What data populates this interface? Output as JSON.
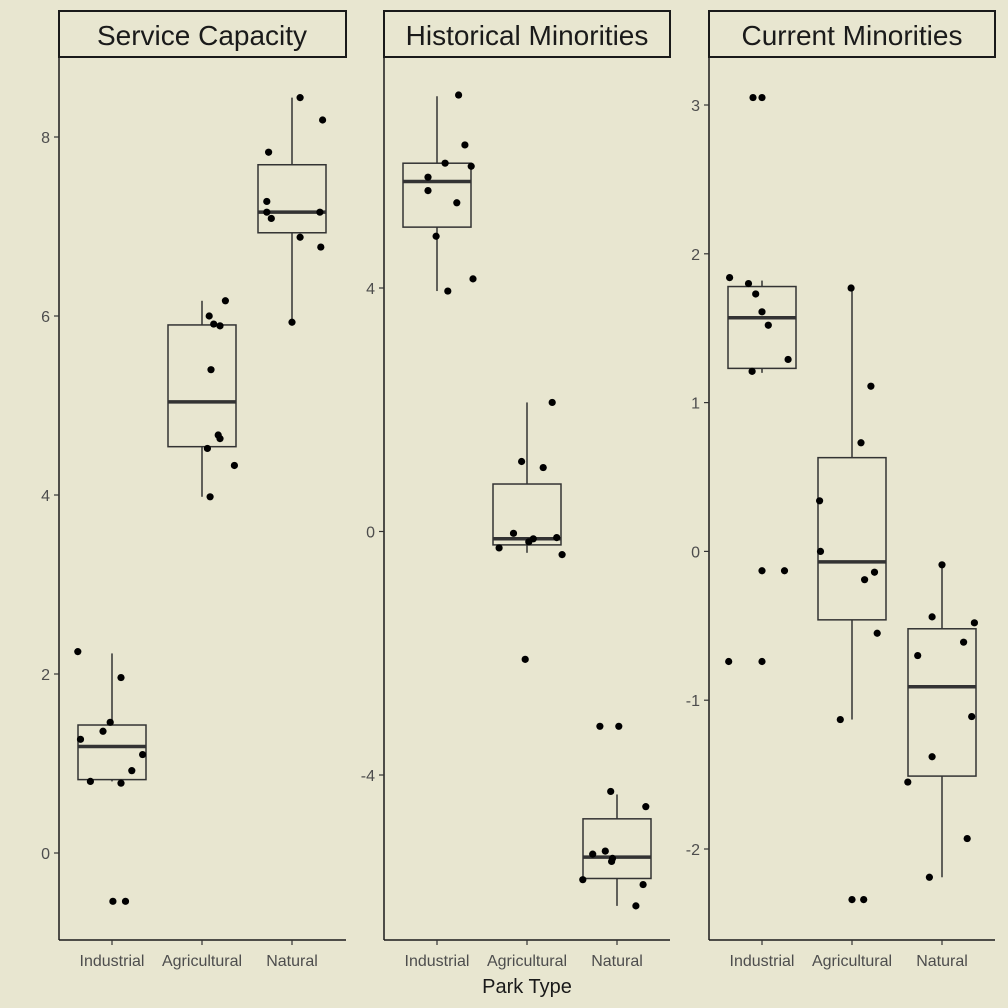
{
  "figure": {
    "xlabel": "Park Type",
    "background": "#E8E6D0"
  },
  "chart_data": [
    {
      "type": "boxplot",
      "title": "Service Capacity",
      "categories": [
        "Industrial",
        "Agricultural",
        "Natural"
      ],
      "yticks": [
        0,
        2,
        4,
        6,
        8
      ],
      "ylim": [
        -1.0,
        8.8
      ],
      "boxes": [
        {
          "q1": 0.82,
          "median": 1.19,
          "q3": 1.43,
          "lo": 0.8,
          "hi": 2.23
        },
        {
          "q1": 4.54,
          "median": 5.04,
          "q3": 5.9,
          "lo": 3.98,
          "hi": 6.17
        },
        {
          "q1": 6.93,
          "median": 7.16,
          "q3": 7.69,
          "lo": 5.93,
          "hi": 8.44
        }
      ],
      "points": [
        {
          "category": "Industrial",
          "offset": -0.38,
          "y": 2.25
        },
        {
          "category": "Industrial",
          "offset": -0.35,
          "y": 1.27
        },
        {
          "category": "Industrial",
          "offset": -0.24,
          "y": 0.8
        },
        {
          "category": "Industrial",
          "offset": -0.1,
          "y": 1.36
        },
        {
          "category": "Industrial",
          "offset": -0.02,
          "y": 1.46
        },
        {
          "category": "Industrial",
          "offset": 0.1,
          "y": 1.96
        },
        {
          "category": "Industrial",
          "offset": 0.1,
          "y": 0.78
        },
        {
          "category": "Industrial",
          "offset": 0.22,
          "y": 0.92
        },
        {
          "category": "Industrial",
          "offset": 0.34,
          "y": 1.1
        },
        {
          "category": "Industrial",
          "offset": 0.01,
          "y": -0.54
        },
        {
          "category": "Industrial",
          "offset": 0.15,
          "y": -0.54
        },
        {
          "category": "Agricultural",
          "offset": 0.06,
          "y": 4.52
        },
        {
          "category": "Agricultural",
          "offset": 0.1,
          "y": 5.4
        },
        {
          "category": "Agricultural",
          "offset": 0.08,
          "y": 6.0
        },
        {
          "category": "Agricultural",
          "offset": 0.13,
          "y": 5.91
        },
        {
          "category": "Agricultural",
          "offset": 0.2,
          "y": 5.89
        },
        {
          "category": "Agricultural",
          "offset": 0.26,
          "y": 6.17
        },
        {
          "category": "Agricultural",
          "offset": 0.18,
          "y": 4.67
        },
        {
          "category": "Agricultural",
          "offset": 0.2,
          "y": 4.63
        },
        {
          "category": "Agricultural",
          "offset": 0.09,
          "y": 3.98
        },
        {
          "category": "Agricultural",
          "offset": 0.36,
          "y": 4.33
        },
        {
          "category": "Natural",
          "offset": -0.26,
          "y": 7.83
        },
        {
          "category": "Natural",
          "offset": -0.28,
          "y": 7.28
        },
        {
          "category": "Natural",
          "offset": -0.28,
          "y": 7.16
        },
        {
          "category": "Natural",
          "offset": -0.23,
          "y": 7.09
        },
        {
          "category": "Natural",
          "offset": 0.09,
          "y": 8.44
        },
        {
          "category": "Natural",
          "offset": 0.34,
          "y": 8.19
        },
        {
          "category": "Natural",
          "offset": 0.31,
          "y": 7.16
        },
        {
          "category": "Natural",
          "offset": 0.09,
          "y": 6.88
        },
        {
          "category": "Natural",
          "offset": 0.32,
          "y": 6.77
        },
        {
          "category": "Natural",
          "offset": 0.0,
          "y": 5.93
        }
      ]
    },
    {
      "type": "boxplot",
      "title": "Historical Minorities",
      "categories": [
        "Industrial",
        "Agricultural",
        "Natural"
      ],
      "yticks": [
        -4,
        0,
        4
      ],
      "ylim": [
        -6.75,
        7.8
      ],
      "boxes": [
        {
          "q1": 5.0,
          "median": 5.75,
          "q3": 6.05,
          "lo": 3.95,
          "hi": 7.15
        },
        {
          "q1": -0.22,
          "median": -0.12,
          "q3": 0.78,
          "lo": -0.35,
          "hi": 2.12
        },
        {
          "q1": -5.7,
          "median": -5.35,
          "q3": -4.72,
          "lo": -6.15,
          "hi": -4.32
        }
      ],
      "points": [
        {
          "category": "Industrial",
          "offset": -0.1,
          "y": 5.6
        },
        {
          "category": "Industrial",
          "offset": -0.1,
          "y": 5.82
        },
        {
          "category": "Industrial",
          "offset": -0.01,
          "y": 4.85
        },
        {
          "category": "Industrial",
          "offset": 0.09,
          "y": 6.05
        },
        {
          "category": "Industrial",
          "offset": 0.22,
          "y": 5.4
        },
        {
          "category": "Industrial",
          "offset": 0.24,
          "y": 7.17
        },
        {
          "category": "Industrial",
          "offset": 0.31,
          "y": 6.35
        },
        {
          "category": "Industrial",
          "offset": 0.38,
          "y": 6.0
        },
        {
          "category": "Industrial",
          "offset": 0.12,
          "y": 3.95
        },
        {
          "category": "Industrial",
          "offset": 0.4,
          "y": 4.15
        },
        {
          "category": "Agricultural",
          "offset": -0.31,
          "y": -0.27
        },
        {
          "category": "Agricultural",
          "offset": -0.15,
          "y": -0.03
        },
        {
          "category": "Agricultural",
          "offset": 0.02,
          "y": -0.17
        },
        {
          "category": "Agricultural",
          "offset": 0.07,
          "y": -0.12
        },
        {
          "category": "Agricultural",
          "offset": -0.06,
          "y": 1.15
        },
        {
          "category": "Agricultural",
          "offset": 0.18,
          "y": 1.05
        },
        {
          "category": "Agricultural",
          "offset": 0.28,
          "y": 2.12
        },
        {
          "category": "Agricultural",
          "offset": 0.33,
          "y": -0.1
        },
        {
          "category": "Agricultural",
          "offset": 0.39,
          "y": -0.38
        },
        {
          "category": "Agricultural",
          "offset": -0.02,
          "y": -2.1
        },
        {
          "category": "Natural",
          "offset": -0.19,
          "y": -3.2
        },
        {
          "category": "Natural",
          "offset": 0.02,
          "y": -3.2
        },
        {
          "category": "Natural",
          "offset": -0.07,
          "y": -4.27
        },
        {
          "category": "Natural",
          "offset": 0.32,
          "y": -4.52
        },
        {
          "category": "Natural",
          "offset": -0.38,
          "y": -5.72
        },
        {
          "category": "Natural",
          "offset": -0.27,
          "y": -5.3
        },
        {
          "category": "Natural",
          "offset": -0.13,
          "y": -5.25
        },
        {
          "category": "Natural",
          "offset": -0.06,
          "y": -5.42
        },
        {
          "category": "Natural",
          "offset": -0.05,
          "y": -5.37
        },
        {
          "category": "Natural",
          "offset": 0.29,
          "y": -5.8
        },
        {
          "category": "Natural",
          "offset": 0.21,
          "y": -6.15
        }
      ]
    },
    {
      "type": "boxplot",
      "title": "Current Minorities",
      "categories": [
        "Industrial",
        "Agricultural",
        "Natural"
      ],
      "yticks": [
        -2,
        -1,
        0,
        1,
        2,
        3
      ],
      "ylim": [
        -2.6,
        3.3
      ],
      "boxes": [
        {
          "q1": 1.23,
          "median": 1.57,
          "q3": 1.78,
          "lo": 1.2,
          "hi": 1.82
        },
        {
          "q1": -0.46,
          "median": -0.07,
          "q3": 0.63,
          "lo": -1.13,
          "hi": 1.77
        },
        {
          "q1": -1.51,
          "median": -0.91,
          "q3": -0.52,
          "lo": -2.19,
          "hi": -0.09
        }
      ],
      "points": [
        {
          "category": "Industrial",
          "offset": -0.36,
          "y": 1.84
        },
        {
          "category": "Industrial",
          "offset": -0.15,
          "y": 1.8
        },
        {
          "category": "Industrial",
          "offset": -0.07,
          "y": 1.73
        },
        {
          "category": "Industrial",
          "offset": 0.0,
          "y": 1.61
        },
        {
          "category": "Industrial",
          "offset": 0.07,
          "y": 1.52
        },
        {
          "category": "Industrial",
          "offset": -0.11,
          "y": 1.21
        },
        {
          "category": "Industrial",
          "offset": 0.29,
          "y": 1.29
        },
        {
          "category": "Industrial",
          "offset": -0.1,
          "y": 3.05
        },
        {
          "category": "Industrial",
          "offset": 0.0,
          "y": 3.05
        },
        {
          "category": "Industrial",
          "offset": 0.0,
          "y": -0.13
        },
        {
          "category": "Industrial",
          "offset": 0.25,
          "y": -0.13
        },
        {
          "category": "Industrial",
          "offset": -0.37,
          "y": -0.74
        },
        {
          "category": "Industrial",
          "offset": 0.0,
          "y": -0.74
        },
        {
          "category": "Agricultural",
          "offset": -0.36,
          "y": 0.34
        },
        {
          "category": "Agricultural",
          "offset": -0.35,
          "y": 0.0
        },
        {
          "category": "Agricultural",
          "offset": -0.13,
          "y": -1.13
        },
        {
          "category": "Agricultural",
          "offset": -0.01,
          "y": 1.77
        },
        {
          "category": "Agricultural",
          "offset": 0.1,
          "y": 0.73
        },
        {
          "category": "Agricultural",
          "offset": 0.14,
          "y": -0.19
        },
        {
          "category": "Agricultural",
          "offset": 0.21,
          "y": 1.11
        },
        {
          "category": "Agricultural",
          "offset": 0.25,
          "y": -0.14
        },
        {
          "category": "Agricultural",
          "offset": 0.28,
          "y": -0.55
        },
        {
          "category": "Agricultural",
          "offset": 0.0,
          "y": -2.34
        },
        {
          "category": "Agricultural",
          "offset": 0.13,
          "y": -2.34
        },
        {
          "category": "Natural",
          "offset": -0.38,
          "y": -1.55
        },
        {
          "category": "Natural",
          "offset": -0.27,
          "y": -0.7
        },
        {
          "category": "Natural",
          "offset": -0.11,
          "y": -0.44
        },
        {
          "category": "Natural",
          "offset": -0.11,
          "y": -1.38
        },
        {
          "category": "Natural",
          "offset": -0.14,
          "y": -2.19
        },
        {
          "category": "Natural",
          "offset": 0.0,
          "y": -0.09
        },
        {
          "category": "Natural",
          "offset": 0.24,
          "y": -0.61
        },
        {
          "category": "Natural",
          "offset": 0.36,
          "y": -0.48
        },
        {
          "category": "Natural",
          "offset": 0.33,
          "y": -1.11
        },
        {
          "category": "Natural",
          "offset": 0.28,
          "y": -1.93
        }
      ]
    }
  ]
}
